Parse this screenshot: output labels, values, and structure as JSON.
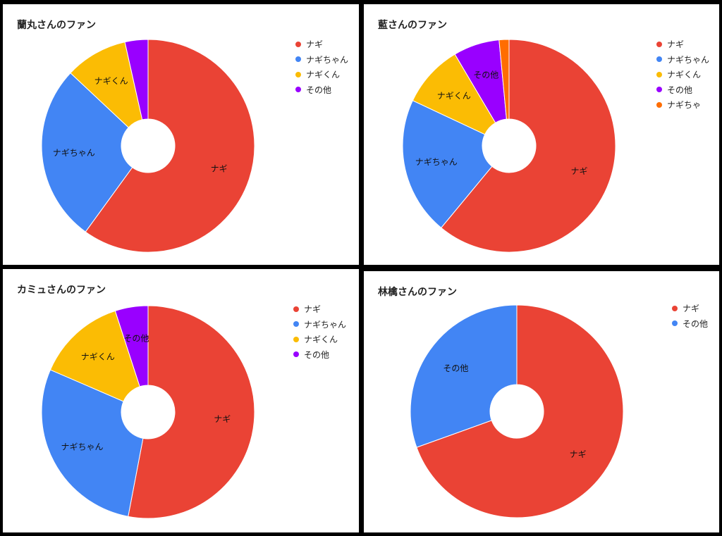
{
  "chart_data": [
    {
      "type": "pie",
      "title": "蘭丸さんのファン",
      "slices": [
        {
          "label": "ナギ",
          "value": 60,
          "color": "#EA4335"
        },
        {
          "label": "ナギちゃん",
          "value": 27,
          "color": "#4285F4"
        },
        {
          "label": "ナギくん",
          "value": 9.5,
          "color": "#FBBC04"
        },
        {
          "label": "その他",
          "value": 3.5,
          "color": "#9900FF"
        }
      ],
      "legend_position": "right"
    },
    {
      "type": "pie",
      "title": "藍さんのファン",
      "slices": [
        {
          "label": "ナギ",
          "value": 61,
          "color": "#EA4335"
        },
        {
          "label": "ナギちゃん",
          "value": 21,
          "color": "#4285F4"
        },
        {
          "label": "ナギくん",
          "value": 9.5,
          "color": "#FBBC04"
        },
        {
          "label": "その他",
          "value": 7,
          "color": "#9900FF"
        },
        {
          "label": "ナギちゃ",
          "value": 1.5,
          "color": "#FF6D01"
        }
      ],
      "legend_position": "right"
    },
    {
      "type": "pie",
      "title": "カミュさんのファン",
      "slices": [
        {
          "label": "ナギ",
          "value": 53,
          "color": "#EA4335"
        },
        {
          "label": "ナギちゃん",
          "value": 28.5,
          "color": "#4285F4"
        },
        {
          "label": "ナギくん",
          "value": 13.5,
          "color": "#FBBC04"
        },
        {
          "label": "その他",
          "value": 5,
          "color": "#9900FF"
        }
      ],
      "legend_position": "right"
    },
    {
      "type": "pie",
      "title": "林檎さんのファン",
      "slices": [
        {
          "label": "ナギ",
          "value": 69.5,
          "color": "#EA4335"
        },
        {
          "label": "その他",
          "value": 30.5,
          "color": "#4285F4"
        }
      ],
      "legend_position": "right"
    }
  ]
}
